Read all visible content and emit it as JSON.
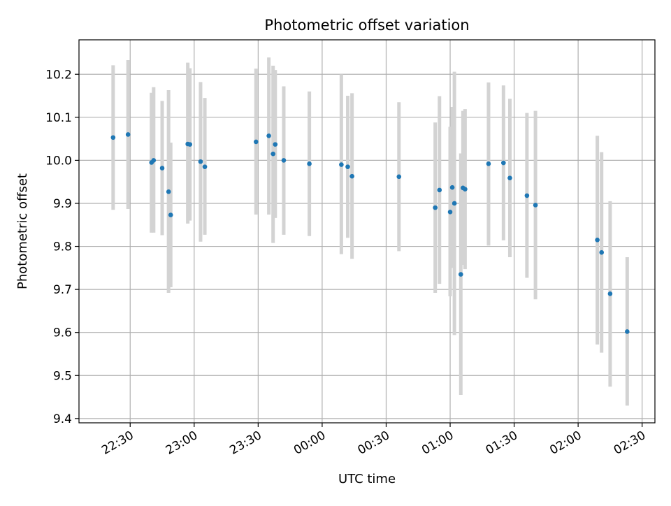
{
  "chart_data": {
    "type": "scatter",
    "title": "Photometric offset variation",
    "xlabel": "UTC time",
    "ylabel": "Photometric offset",
    "xlim": [
      "22:06",
      "02:36"
    ],
    "ylim": [
      9.39,
      10.28
    ],
    "xticks": [
      "22:30",
      "23:00",
      "23:30",
      "00:00",
      "00:30",
      "01:00",
      "01:30",
      "02:00",
      "02:30"
    ],
    "yticks": [
      "9.4",
      "9.5",
      "9.6",
      "9.7",
      "9.8",
      "9.9",
      "10.0",
      "10.1",
      "10.2"
    ],
    "grid": true,
    "colors": {
      "point": "#1f77b4",
      "errorbar": "#d3d3d3",
      "grid": "#b0b0b0"
    },
    "points": [
      {
        "t": "22:22",
        "y": 10.053,
        "ymin": 9.885,
        "ymax": 10.221
      },
      {
        "t": "22:29",
        "y": 10.06,
        "ymin": 9.887,
        "ymax": 10.233
      },
      {
        "t": "22:40",
        "y": 9.995,
        "ymin": 9.832,
        "ymax": 10.157
      },
      {
        "t": "22:41",
        "y": 10.0,
        "ymin": 9.832,
        "ymax": 10.17
      },
      {
        "t": "22:45",
        "y": 9.982,
        "ymin": 9.826,
        "ymax": 10.138
      },
      {
        "t": "22:48",
        "y": 9.927,
        "ymin": 9.692,
        "ymax": 10.163
      },
      {
        "t": "22:49",
        "y": 9.873,
        "ymin": 9.705,
        "ymax": 10.041
      },
      {
        "t": "22:57",
        "y": 10.038,
        "ymin": 9.853,
        "ymax": 10.227
      },
      {
        "t": "22:58",
        "y": 10.037,
        "ymin": 9.86,
        "ymax": 10.214
      },
      {
        "t": "23:03",
        "y": 9.997,
        "ymin": 9.811,
        "ymax": 10.182
      },
      {
        "t": "23:05",
        "y": 9.985,
        "ymin": 9.827,
        "ymax": 10.145
      },
      {
        "t": "23:29",
        "y": 10.043,
        "ymin": 9.874,
        "ymax": 10.213
      },
      {
        "t": "23:35",
        "y": 10.057,
        "ymin": 9.874,
        "ymax": 10.239
      },
      {
        "t": "23:37",
        "y": 10.015,
        "ymin": 9.808,
        "ymax": 10.22
      },
      {
        "t": "23:38",
        "y": 10.037,
        "ymin": 9.866,
        "ymax": 10.21
      },
      {
        "t": "23:42",
        "y": 10.0,
        "ymin": 9.827,
        "ymax": 10.172
      },
      {
        "t": "23:54",
        "y": 9.992,
        "ymin": 9.824,
        "ymax": 10.16
      },
      {
        "t": "00:09",
        "y": 9.99,
        "ymin": 9.782,
        "ymax": 10.2
      },
      {
        "t": "00:12",
        "y": 9.985,
        "ymin": 9.82,
        "ymax": 10.15
      },
      {
        "t": "00:14",
        "y": 9.963,
        "ymin": 9.771,
        "ymax": 10.156
      },
      {
        "t": "00:36",
        "y": 9.962,
        "ymin": 9.789,
        "ymax": 10.135
      },
      {
        "t": "00:53",
        "y": 9.89,
        "ymin": 9.692,
        "ymax": 10.088
      },
      {
        "t": "00:55",
        "y": 9.931,
        "ymin": 9.713,
        "ymax": 10.149
      },
      {
        "t": "01:00",
        "y": 9.88,
        "ymin": 9.684,
        "ymax": 10.078
      },
      {
        "t": "01:01",
        "y": 9.937,
        "ymin": 9.75,
        "ymax": 10.124
      },
      {
        "t": "01:02",
        "y": 9.9,
        "ymin": 9.594,
        "ymax": 10.206
      },
      {
        "t": "01:05",
        "y": 9.735,
        "ymin": 9.455,
        "ymax": 10.016
      },
      {
        "t": "01:06",
        "y": 9.936,
        "ymin": 9.757,
        "ymax": 10.115
      },
      {
        "t": "01:07",
        "y": 9.933,
        "ymin": 9.747,
        "ymax": 10.119
      },
      {
        "t": "01:18",
        "y": 9.992,
        "ymin": 9.802,
        "ymax": 10.181
      },
      {
        "t": "01:25",
        "y": 9.994,
        "ymin": 9.814,
        "ymax": 10.174
      },
      {
        "t": "01:28",
        "y": 9.959,
        "ymin": 9.775,
        "ymax": 10.143
      },
      {
        "t": "01:36",
        "y": 9.918,
        "ymin": 9.727,
        "ymax": 10.11
      },
      {
        "t": "01:40",
        "y": 9.896,
        "ymin": 9.677,
        "ymax": 10.115
      },
      {
        "t": "02:09",
        "y": 9.815,
        "ymin": 9.572,
        "ymax": 10.057
      },
      {
        "t": "02:11",
        "y": 9.786,
        "ymin": 9.553,
        "ymax": 10.019
      },
      {
        "t": "02:15",
        "y": 9.69,
        "ymin": 9.474,
        "ymax": 9.905
      },
      {
        "t": "02:23",
        "y": 9.602,
        "ymin": 9.43,
        "ymax": 9.775
      }
    ]
  }
}
